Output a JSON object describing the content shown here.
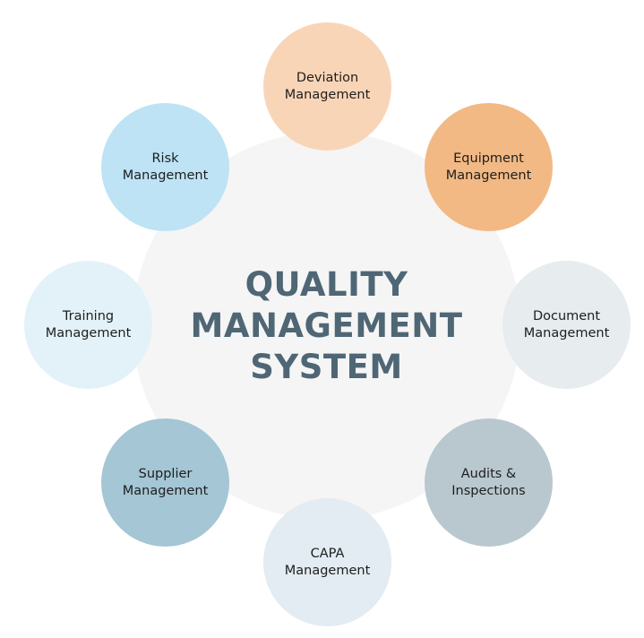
{
  "center": {
    "lines": [
      "QUALITY",
      "MANAGEMENT",
      "SYSTEM"
    ],
    "color": "#4f6675",
    "background": "#f5f5f5"
  },
  "nodes": [
    {
      "id": "deviation",
      "lines": [
        "Deviation",
        "Management"
      ],
      "color": "#f9d5b8"
    },
    {
      "id": "equipment",
      "lines": [
        "Equipment",
        "Management"
      ],
      "color": "#f2b985"
    },
    {
      "id": "document",
      "lines": [
        "Document",
        "Management"
      ],
      "color": "#e7ecee"
    },
    {
      "id": "audits",
      "lines": [
        "Audits &",
        "Inspections"
      ],
      "color": "#b9c8cf"
    },
    {
      "id": "capa",
      "lines": [
        "CAPA",
        "Management"
      ],
      "color": "#e2ecf2"
    },
    {
      "id": "supplier",
      "lines": [
        "Supplier",
        "Management"
      ],
      "color": "#a4c6d5"
    },
    {
      "id": "training",
      "lines": [
        "Training",
        "Management"
      ],
      "color": "#e3f2f9"
    },
    {
      "id": "risk",
      "lines": [
        "Risk",
        "Management"
      ],
      "color": "#bde3f5"
    }
  ]
}
